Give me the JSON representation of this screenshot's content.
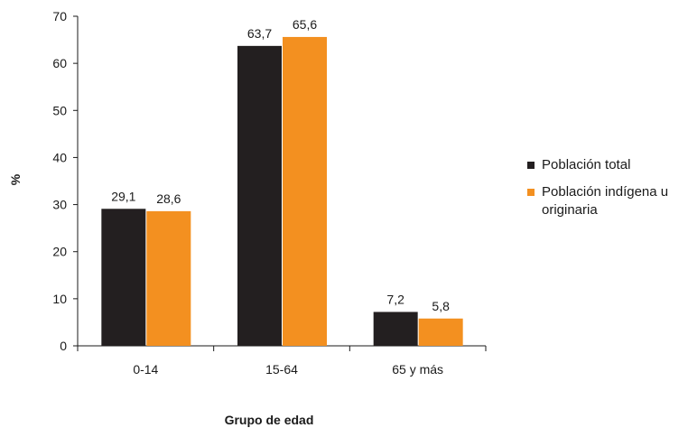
{
  "chart_data": {
    "type": "bar",
    "categories": [
      "0-14",
      "15-64",
      "65 y más"
    ],
    "series": [
      {
        "name": "Población total",
        "values": [
          29.1,
          63.7,
          7.2
        ],
        "labels": [
          "29,1",
          "63,7",
          "7,2"
        ],
        "color": "#231f20"
      },
      {
        "name": "Población indígena u originaria",
        "values": [
          28.6,
          65.6,
          5.8
        ],
        "labels": [
          "28,6",
          "65,6",
          "5,8"
        ],
        "color": "#f39020"
      }
    ],
    "xlabel": "Grupo de edad",
    "ylabel": "%",
    "ylim": [
      0,
      70
    ],
    "yticks": [
      0,
      10,
      20,
      30,
      40,
      50,
      60,
      70
    ],
    "grid": false,
    "legend_position": "right"
  },
  "legend": {
    "items": [
      {
        "label": "Población total",
        "color": "#231f20"
      },
      {
        "label": "Población indígena u originaria",
        "color": "#f39020"
      }
    ]
  }
}
